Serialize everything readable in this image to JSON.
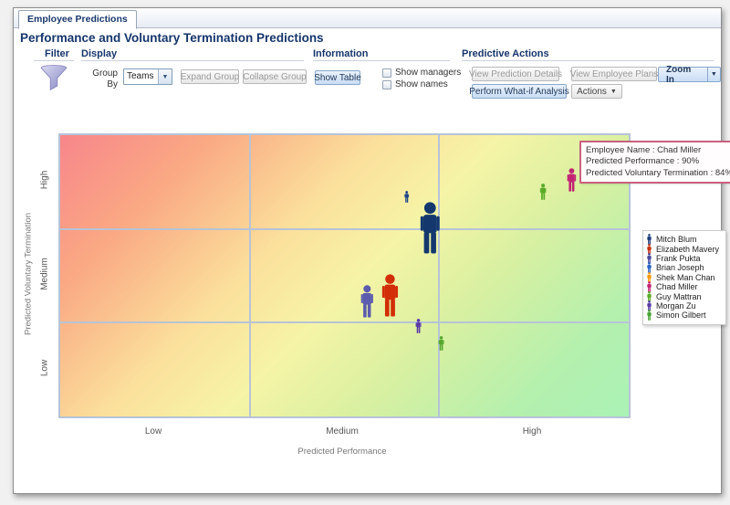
{
  "tab": {
    "label": "Employee Predictions"
  },
  "page_title": "Performance and Voluntary Termination Predictions",
  "toolbar": {
    "filter": {
      "header": "Filter"
    },
    "display": {
      "header": "Display",
      "group_by": {
        "line1": "Group",
        "line2": "By",
        "value": "Teams"
      },
      "expand_button": "Expand Group",
      "collapse_button": "Collapse Group"
    },
    "information": {
      "header": "Information",
      "show_table_button": "Show Table",
      "checkboxes": [
        {
          "label": "Show managers",
          "checked": false
        },
        {
          "label": "Show names",
          "checked": false
        }
      ]
    },
    "predictive_actions": {
      "header": "Predictive Actions",
      "view_prediction_details_button": "View Prediction Details",
      "view_employee_plans_button": "View Employee Plans",
      "perform_whatif_button": "Perform What-if Analysis",
      "actions_button": "Actions",
      "zoom_in_button": "Zoom In"
    }
  },
  "tooltip": {
    "lines": [
      "Employee Name : Chad Miller",
      "Predicted Performance : 90%",
      "Predicted Voluntary Termination : 84%"
    ]
  },
  "legend": {
    "employees": [
      {
        "name": "Mitch Blum",
        "color": "#1b3c7d"
      },
      {
        "name": "Elizabeth Mavery",
        "color": "#c5310e"
      },
      {
        "name": "Frank Pukta",
        "color": "#4a4aa0"
      },
      {
        "name": "Brian Joseph",
        "color": "#2b62c4"
      },
      {
        "name": "Shek Man Chan",
        "color": "#f59a0a"
      },
      {
        "name": "Chad Miller",
        "color": "#c22474"
      },
      {
        "name": "Guy Mattran",
        "color": "#5aab28"
      },
      {
        "name": "Morgan Zu",
        "color": "#5b3ba8"
      },
      {
        "name": "Simon Gilbert",
        "color": "#46a434"
      }
    ]
  },
  "chart_data": {
    "type": "scatter",
    "title": "Performance and Voluntary Termination Predictions",
    "xlabel": "Predicted Performance",
    "ylabel": "Predicted Voluntary Termination",
    "x_ticks": [
      "Low",
      "Medium",
      "High"
    ],
    "y_ticks": [
      "High",
      "Medium",
      "Low"
    ],
    "grid": true,
    "background": {
      "high_risk_corner": "#f8868b",
      "mid": "#f6f4a6",
      "low_risk_corner": "#aaf2b5"
    },
    "points": [
      {
        "name": "Brian Joseph",
        "color": "#1e4388",
        "performance_pct": 61,
        "termination_pct": 78,
        "size": 13
      },
      {
        "name": "Mitch Blum",
        "color": "#14386e",
        "performance_pct": 65,
        "termination_pct": 67,
        "size": 57
      },
      {
        "name": "Elizabeth Mavery",
        "color": "#d22e08",
        "performance_pct": 58,
        "termination_pct": 43,
        "size": 47
      },
      {
        "name": "Frank Pukta",
        "color": "#5c5cae",
        "performance_pct": 54,
        "termination_pct": 41,
        "size": 36
      },
      {
        "name": "Morgan Zu",
        "color": "#5b3ba8",
        "performance_pct": 63,
        "termination_pct": 32,
        "size": 16
      },
      {
        "name": "Simon Gilbert",
        "color": "#55a82e",
        "performance_pct": 67,
        "termination_pct": 26,
        "size": 16
      },
      {
        "name": "Guy Mattran",
        "color": "#5aab28",
        "performance_pct": 85,
        "termination_pct": 80,
        "size": 18
      },
      {
        "name": "Chad Miller",
        "color": "#c22474",
        "performance_pct": 90,
        "termination_pct": 84,
        "size": 26
      }
    ]
  }
}
